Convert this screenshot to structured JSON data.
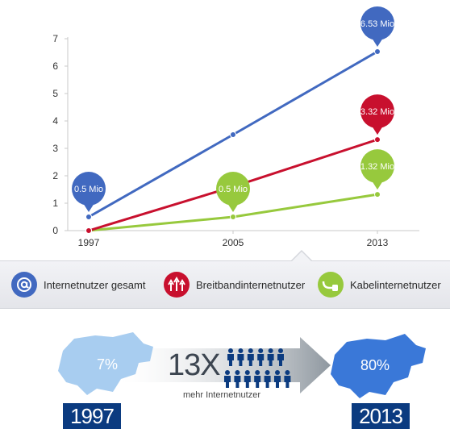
{
  "chart_data": {
    "type": "line",
    "x": [
      "1997",
      "2005",
      "2013"
    ],
    "ylim": [
      0,
      7
    ],
    "yticks": [
      0,
      1,
      2,
      3,
      4,
      5,
      6,
      7
    ],
    "grid": false,
    "series": [
      {
        "name": "Internetnutzer gesamt",
        "color": "#4169c0",
        "values": [
          0.5,
          3.5,
          6.53
        ]
      },
      {
        "name": "Breitbandinternetnutzer",
        "color": "#c8102e",
        "values": [
          0.0,
          1.6,
          3.32
        ]
      },
      {
        "name": "Kabelinternetnutzer",
        "color": "#97c93d",
        "values": [
          0.0,
          0.5,
          1.32
        ]
      }
    ],
    "callouts": [
      {
        "series": 0,
        "index": 0,
        "text": "0.5 Mio"
      },
      {
        "series": 2,
        "index": 1,
        "text": "0.5 Mio"
      },
      {
        "series": 0,
        "index": 2,
        "text": "6.53 Mio"
      },
      {
        "series": 1,
        "index": 2,
        "text": "3.32 Mio"
      },
      {
        "series": 2,
        "index": 2,
        "text": "1.32 Mio"
      }
    ]
  },
  "legend": {
    "items": [
      {
        "label": "Internetnutzer gesamt",
        "color": "#4169c0",
        "icon": "at-sign-icon"
      },
      {
        "label": "Breitbandinternetnutzer",
        "color": "#c8102e",
        "icon": "arrows-up-icon"
      },
      {
        "label": "Kabelinternetnutzer",
        "color": "#97c93d",
        "icon": "cable-plug-icon"
      }
    ]
  },
  "comparison": {
    "start": {
      "year": "1997",
      "percent": "7%"
    },
    "end": {
      "year": "2013",
      "percent": "80%"
    },
    "multiplier": "13X",
    "caption": "mehr Internetnutzer",
    "colors": {
      "year_box": "#0b3b80",
      "map_light": "#a8cdf0",
      "map_dark": "#3a78d8",
      "arrow": "#9aa3ad"
    }
  }
}
